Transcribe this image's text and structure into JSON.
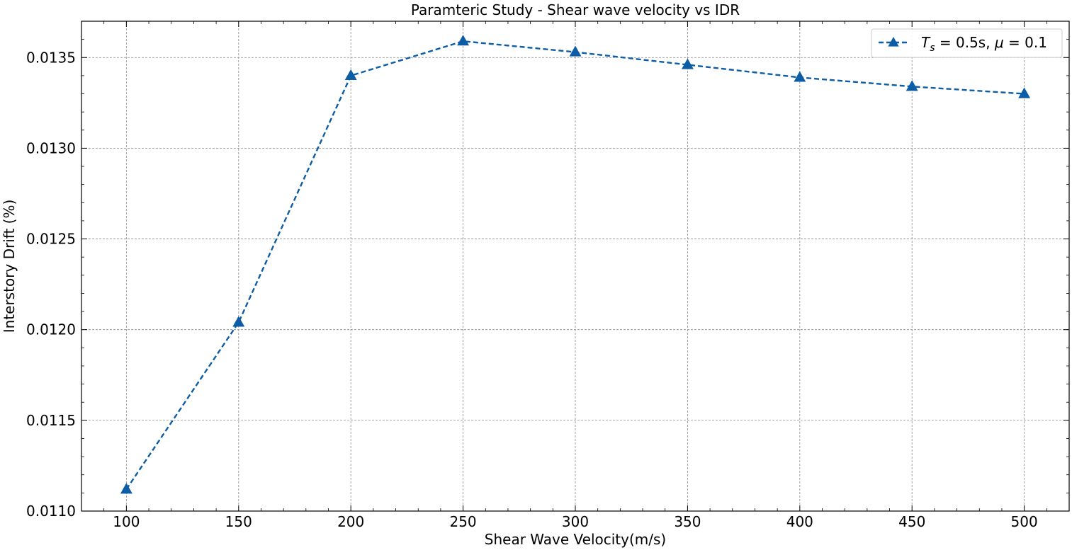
{
  "chart_data": {
    "type": "line",
    "title": "Paramteric Study - Shear wave velocity vs IDR",
    "xlabel": "Shear Wave Velocity(m/s)",
    "ylabel": "Interstory Drift (%)",
    "xlim": [
      80,
      520
    ],
    "ylim": [
      0.011,
      0.0137
    ],
    "x_ticks": [
      100,
      150,
      200,
      250,
      300,
      350,
      400,
      450,
      500
    ],
    "y_ticks": [
      0.011,
      0.0115,
      0.012,
      0.0125,
      0.013,
      0.0135
    ],
    "y_tick_labels": [
      "0.0110",
      "0.0115",
      "0.0120",
      "0.0125",
      "0.0130",
      "0.0135"
    ],
    "grid": true,
    "legend_position": "top-right",
    "series": [
      {
        "name_parts": {
          "T": "T",
          "sub": "s",
          "rest": " = 0.5s, ",
          "mu": "μ",
          "mu_rest": " = 0.1"
        },
        "color": "#0c5da5",
        "linestyle": "dashed",
        "marker": "triangle-up",
        "x": [
          100,
          150,
          200,
          250,
          300,
          350,
          400,
          450,
          500
        ],
        "y": [
          0.01112,
          0.01204,
          0.0134,
          0.01359,
          0.01353,
          0.01346,
          0.01339,
          0.01334,
          0.0133
        ]
      }
    ]
  }
}
